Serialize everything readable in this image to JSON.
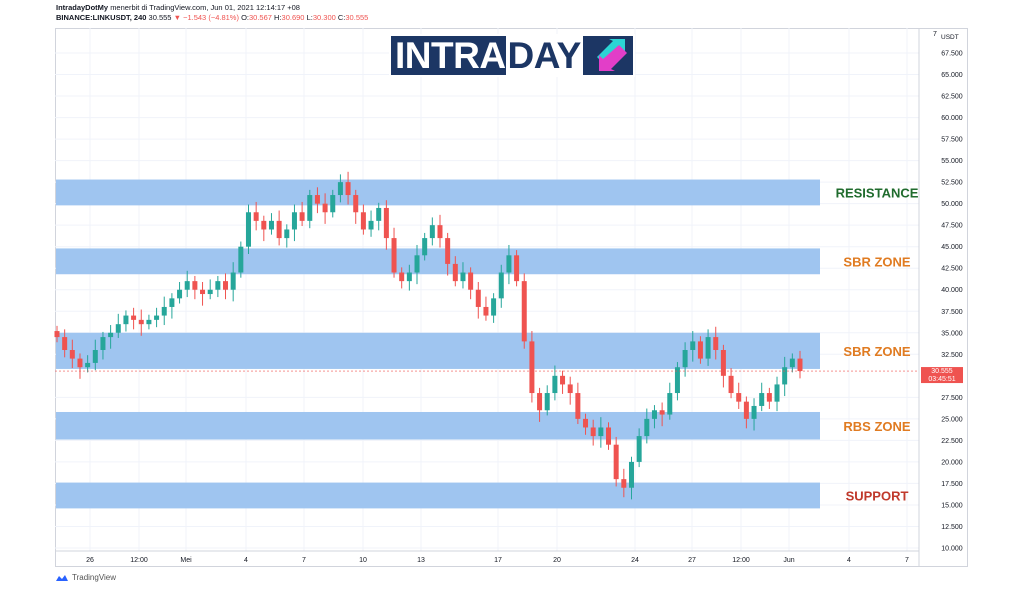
{
  "header": {
    "line1_author": "IntradayDotMy",
    "line1_rest": "menerbit di TradingView.com, Jun 01, 2021 12:14:17 +08",
    "symbol": "BINANCE:LINKUSDT, 240",
    "price": "30.555",
    "change": "▼ −1.543 (−4.81%)",
    "o_label": "O:",
    "o_value": "30.567",
    "h_label": "H:",
    "h_value": "30.690",
    "l_label": "L:",
    "l_value": "30.300",
    "c_label": "C:",
    "c_value": "30.555"
  },
  "logo": {
    "text_left": "INTRA",
    "text_hl": "DAY"
  },
  "footer": {
    "brand": "TradingView"
  },
  "colors": {
    "zone": "#9fc5f0",
    "up": "#26a69a",
    "down": "#ef5350",
    "resistance": "#1f6b2d",
    "sbr": "#e07b21",
    "support": "#c0392b",
    "grid": "#f0f3fa"
  },
  "chart_data": {
    "type": "candlestick",
    "currency": "USDT",
    "ylim": [
      10,
      70
    ],
    "y_ticks": [
      "67.500",
      "65.000",
      "62.500",
      "60.000",
      "57.500",
      "55.000",
      "52.500",
      "50.000",
      "47.500",
      "45.000",
      "42.500",
      "40.000",
      "37.500",
      "35.000",
      "32.500",
      "27.500",
      "25.000",
      "22.500",
      "20.000",
      "17.500",
      "15.000",
      "12.500",
      "10.000"
    ],
    "y_tick_values": [
      67.5,
      65,
      62.5,
      60,
      57.5,
      55,
      52.5,
      50,
      47.5,
      45,
      42.5,
      40,
      37.5,
      35,
      32.5,
      27.5,
      25,
      22.5,
      20,
      17.5,
      15,
      12.5,
      10
    ],
    "top_tick_label": "7",
    "x_ticks": [
      "26",
      "12:00",
      "Mei",
      "4",
      "7",
      "10",
      "13",
      "17",
      "20",
      "24",
      "27",
      "12:00",
      "Jun",
      "4",
      "7"
    ],
    "last_price_label": "30.555",
    "countdown_label": "03:45:51",
    "last_price": 30.555,
    "zones": [
      {
        "label": "RESISTANCE",
        "low": 49.8,
        "high": 52.8,
        "color_key": "resistance"
      },
      {
        "label": "SBR ZONE",
        "low": 41.8,
        "high": 44.8,
        "color_key": "sbr"
      },
      {
        "label": "SBR ZONE",
        "low": 30.8,
        "high": 35.0,
        "color_key": "sbr"
      },
      {
        "label": "RBS ZONE",
        "low": 22.6,
        "high": 25.8,
        "color_key": "sbr"
      },
      {
        "label": "SUPPORT",
        "low": 14.6,
        "high": 17.6,
        "color_key": "support"
      }
    ],
    "price_path": [
      34.5,
      33.0,
      32.0,
      31.0,
      31.5,
      33.0,
      34.5,
      35.0,
      36.0,
      37.0,
      36.5,
      36.0,
      36.5,
      37.0,
      38.0,
      39.0,
      40.0,
      41.0,
      40.0,
      39.5,
      40.0,
      41.0,
      40.0,
      42.0,
      45.0,
      49.0,
      48.0,
      47.0,
      48.0,
      46.0,
      47.0,
      49.0,
      48.0,
      51.0,
      50.0,
      49.0,
      51.0,
      52.5,
      51.0,
      49.0,
      47.0,
      48.0,
      49.5,
      46.0,
      42.0,
      41.0,
      42.0,
      44.0,
      46.0,
      47.5,
      46.0,
      43.0,
      41.0,
      42.0,
      40.0,
      38.0,
      37.0,
      39.0,
      42.0,
      44.0,
      41.0,
      34.0,
      28.0,
      26.0,
      28.0,
      30.0,
      29.0,
      28.0,
      25.0,
      24.0,
      23.0,
      24.0,
      22.0,
      18.0,
      17.0,
      20.0,
      23.0,
      25.0,
      26.0,
      25.5,
      28.0,
      31.0,
      33.0,
      34.0,
      32.0,
      34.5,
      33.0,
      30.0,
      28.0,
      27.0,
      25.0,
      26.5,
      28.0,
      27.0,
      29.0,
      31.0,
      32.0,
      30.555
    ]
  }
}
